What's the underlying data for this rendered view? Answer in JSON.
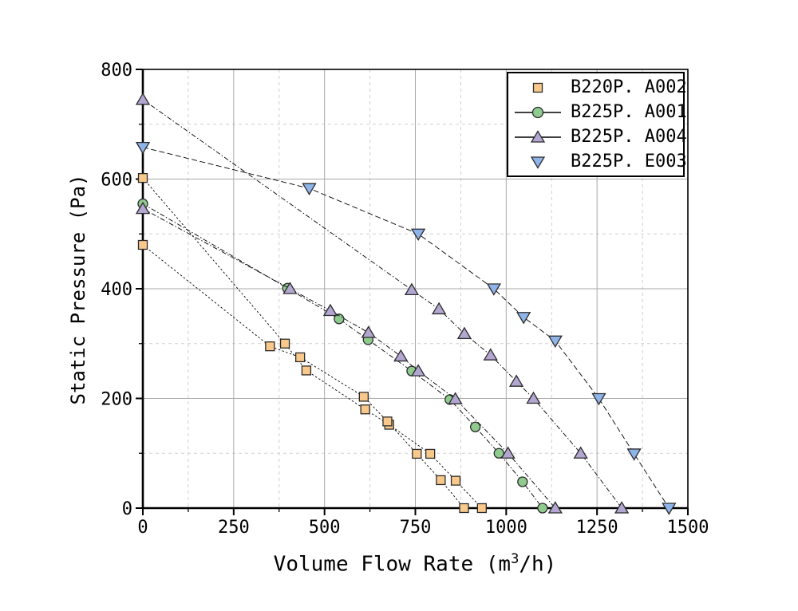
{
  "labels": {
    "ylabel": "Static Pressure (Pa)",
    "xlabel_pre": "Volume Flow Rate (m",
    "xlabel_sup": "3",
    "xlabel_post": "/h)"
  },
  "colors": {
    "axis": "#000000",
    "grid_major": "#a9a9a9",
    "grid_minor": "#cfcfcf",
    "curve_line": "#000000",
    "marker_edge": "#2b2b2b",
    "legend_border": "#000000",
    "legend_bg": "#ffffff"
  },
  "chart_data": {
    "type": "line",
    "title": "",
    "xlabel": "Volume Flow Rate (m³/h)",
    "ylabel": "Static Pressure (Pa)",
    "xlim": [
      0,
      1500
    ],
    "ylim": [
      0,
      800
    ],
    "x_major_ticks": [
      0,
      250,
      500,
      750,
      1000,
      1250,
      1500
    ],
    "x_minor_ticks": [
      125,
      375,
      625,
      875,
      1125,
      1375
    ],
    "y_major_ticks": [
      0,
      200,
      400,
      600,
      800
    ],
    "y_minor_ticks": [
      100,
      300,
      500,
      700
    ],
    "grid": "major solid, minor dashed",
    "legend_position": "top-right",
    "series": [
      {
        "name": "B220P. A002",
        "marker": "square",
        "fill": "#F9C98C",
        "line_dash": "2.5 2.5",
        "legend_line": false,
        "curves": [
          [
            [
              0,
              602
            ],
            [
              391,
              300
            ],
            [
              450,
              251
            ],
            [
              612,
              180
            ],
            [
              678,
              152
            ],
            [
              791,
              99
            ],
            [
              861,
              50
            ],
            [
              933,
              0
            ]
          ],
          [
            [
              0,
              480
            ],
            [
              350,
              295
            ],
            [
              433,
              275
            ],
            [
              608,
              203
            ],
            [
              673,
              158
            ],
            [
              754,
              99
            ],
            [
              820,
              51
            ],
            [
              884,
              0
            ]
          ]
        ]
      },
      {
        "name": "B225P. A001",
        "marker": "circle",
        "fill": "#8FCB8F",
        "line_dash": "6 2.5 1.5 2.5",
        "legend_line": true,
        "curves": [
          [
            [
              0,
              555
            ],
            [
              398,
              401
            ],
            [
              540,
              345
            ],
            [
              620,
              307
            ],
            [
              740,
              250
            ],
            [
              845,
              198
            ],
            [
              915,
              148
            ],
            [
              980,
              100
            ],
            [
              1045,
              48
            ],
            [
              1100,
              0
            ]
          ]
        ]
      },
      {
        "name": "B225P. A004",
        "marker": "triangle-up",
        "fill": "#B3A6D0",
        "line_dash": "6 2.5 1.5 2.5",
        "legend_line": true,
        "curves": [
          [
            [
              0,
              745
            ],
            [
              740,
              398
            ],
            [
              815,
              363
            ],
            [
              885,
              318
            ],
            [
              957,
              279
            ],
            [
              1028,
              231
            ],
            [
              1075,
              200
            ],
            [
              1205,
              100
            ],
            [
              1318,
              0
            ]
          ],
          [
            [
              0,
              546
            ],
            [
              405,
              400
            ],
            [
              516,
              360
            ],
            [
              621,
              320
            ],
            [
              710,
              277
            ],
            [
              758,
              250
            ],
            [
              860,
              199
            ],
            [
              1005,
              100
            ],
            [
              1135,
              0
            ]
          ]
        ]
      },
      {
        "name": "B225P. E003",
        "marker": "triangle-down",
        "fill": "#8FB4EA",
        "line_dash": "7 3.5",
        "legend_line": false,
        "curves": [
          [
            [
              0,
              658
            ],
            [
              458,
              583
            ],
            [
              758,
              500
            ],
            [
              966,
              400
            ],
            [
              1048,
              348
            ],
            [
              1135,
              305
            ],
            [
              1255,
              200
            ],
            [
              1352,
              99
            ],
            [
              1448,
              0
            ]
          ]
        ]
      }
    ]
  }
}
